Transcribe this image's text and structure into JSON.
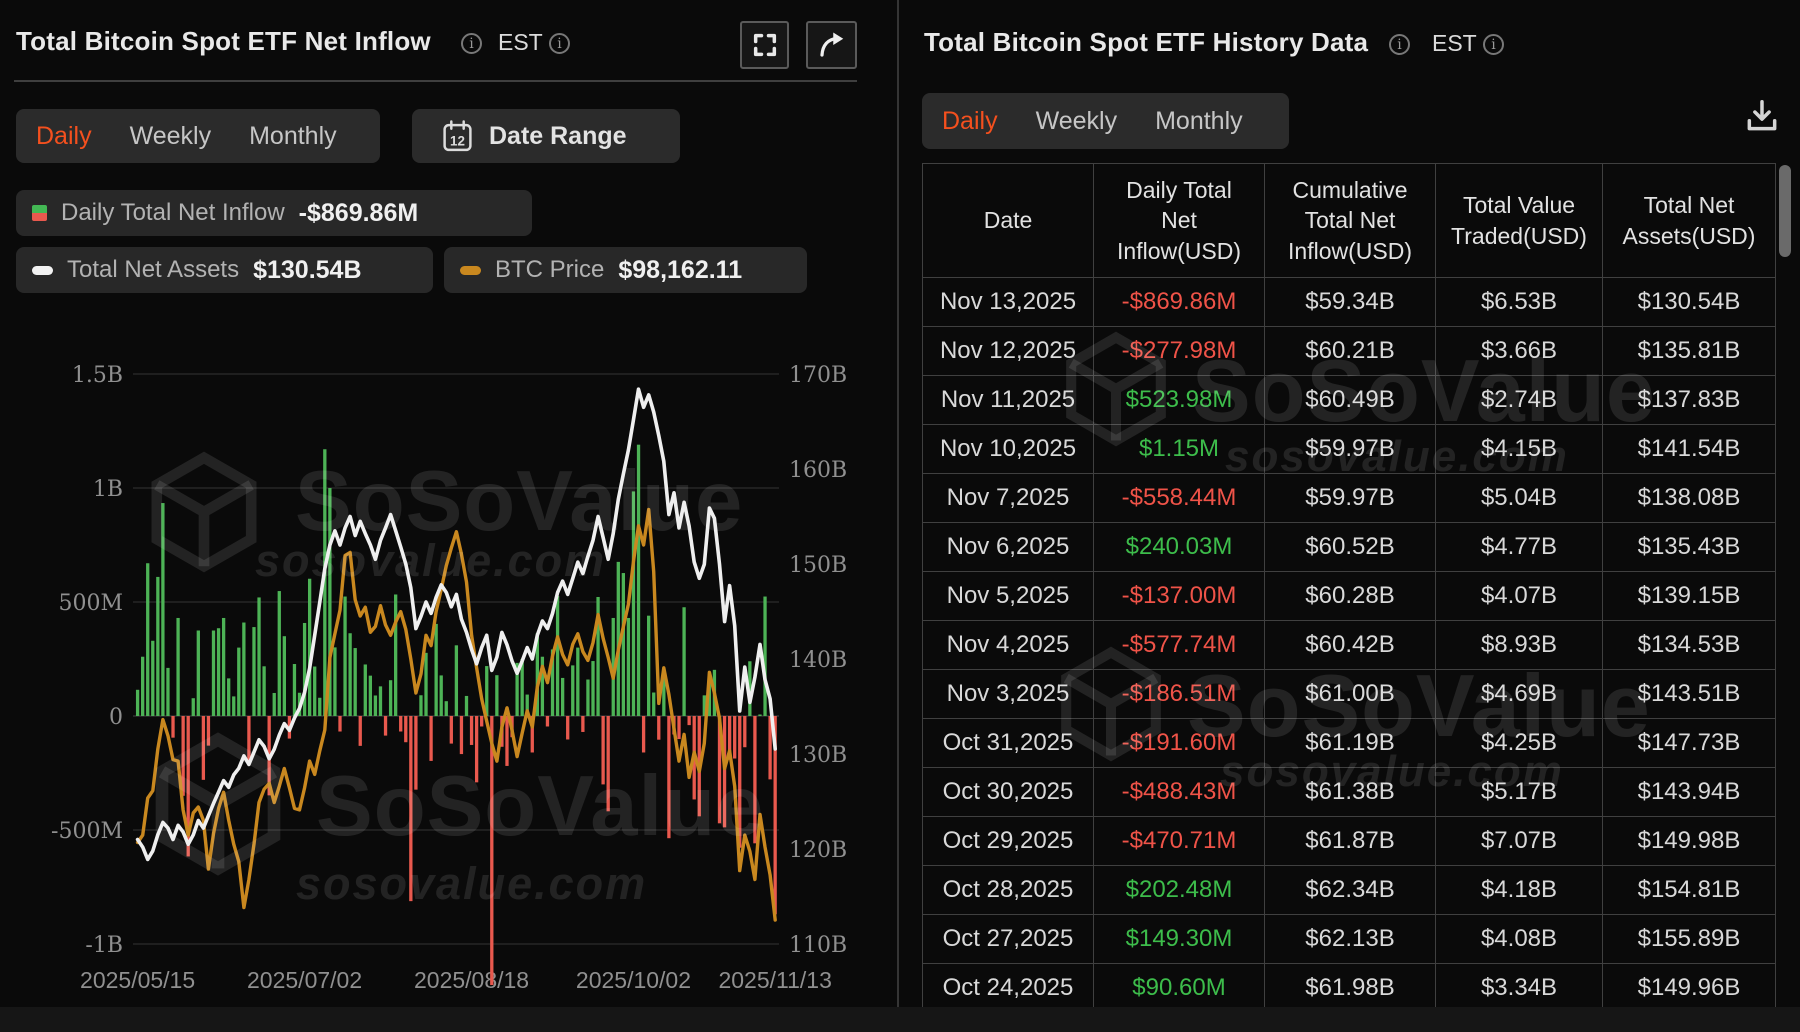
{
  "brand": {
    "watermark_title": "SoSoValue",
    "watermark_domain": "sosovalue.com"
  },
  "colors": {
    "accent_orange": "#f4501e",
    "table_green": "#3dbd4b",
    "table_red": "#ef5348",
    "bar_green": "#4db356",
    "bar_red": "#e9594e",
    "line_assets": "#efefef",
    "line_btc": "#c9881f",
    "grid": "#2c2c2c",
    "zero_line": "#3a3a3a",
    "axis_text": "#909090"
  },
  "left_panel": {
    "title": "Total Bitcoin Spot ETF Net Inflow",
    "timezone_label": "EST",
    "tabs": {
      "items": [
        "Daily",
        "Weekly",
        "Monthly"
      ],
      "active": "Daily"
    },
    "date_range_label": "Date Range",
    "legend": {
      "inflow": {
        "label": "Daily Total Net Inflow",
        "value": "-$869.86M"
      },
      "assets": {
        "label": "Total Net Assets",
        "value": "$130.54B"
      },
      "btc": {
        "label": "BTC Price",
        "value": "$98,162.11"
      }
    }
  },
  "chart_data": {
    "type": "bar+line combo",
    "title": "Total Bitcoin Spot ETF Net Inflow",
    "legend_position": "top-left",
    "grid": "on",
    "x": {
      "tick_labels": [
        "2025/05/15",
        "2025/07/02",
        "2025/08/18",
        "2025/10/02",
        "2025/11/13"
      ],
      "tick_indices": [
        0,
        33,
        66,
        98,
        126
      ],
      "points": 127
    },
    "left_axis": {
      "tick_labels": [
        "1.5B",
        "1B",
        "500M",
        "0",
        "-500M",
        "-1B"
      ],
      "tick_values_musd": [
        1500,
        1000,
        500,
        0,
        -500,
        -1000
      ]
    },
    "right_axis": {
      "tick_labels": [
        "170B",
        "160B",
        "150B",
        "140B",
        "130B",
        "120B",
        "110B"
      ],
      "tick_values_busd": [
        170,
        160,
        150,
        140,
        130,
        120,
        110
      ]
    },
    "series": [
      {
        "name": "Daily Total Net Inflow",
        "type": "bar",
        "unit": "USD millions",
        "axis": "left",
        "values": [
          115,
          260,
          670,
          330,
          610,
          934,
          211,
          -95,
          430,
          -350,
          -616,
          78,
          375,
          -280,
          -130,
          375,
          385,
          430,
          165,
          86,
          300,
          410,
          -215,
          390,
          520,
          218,
          -348,
          101,
          548,
          350,
          -99,
          228,
          102,
          408,
          602,
          217,
          80,
          1170,
          1000,
          301,
          -68,
          524,
          363,
          298,
          -131,
          226,
          177,
          90,
          130,
          -86,
          157,
          533,
          -68,
          -115,
          -812,
          -323,
          91,
          277,
          -197,
          404,
          178,
          65,
          -121,
          310,
          -167,
          88,
          -127,
          -291,
          -46,
          219,
          -1180,
          179,
          -135,
          -219,
          -93,
          233,
          250,
          94,
          -160,
          363,
          260,
          -46,
          292,
          526,
          167,
          -103,
          222,
          300,
          -70,
          160,
          241,
          522,
          -300,
          -418,
          430,
          676,
          627,
          430,
          985,
          1190,
          -160,
          440,
          103,
          -104,
          200,
          -536,
          -81,
          -101,
          477,
          -40,
          -366,
          -440,
          90.6,
          149.3,
          202.48,
          -470.71,
          -488.43,
          -191.6,
          -186.51,
          -577.74,
          -137,
          240.03,
          -558.44,
          1.15,
          523.98,
          -277.98,
          -869.86
        ]
      },
      {
        "name": "Total Net Assets",
        "type": "line",
        "unit": "USD billions",
        "axis": "right",
        "values": [
          121.0,
          120.2,
          118.9,
          119.8,
          121.5,
          122.8,
          122.2,
          121.0,
          122.5,
          121.8,
          120.5,
          121.5,
          123.0,
          122.2,
          123.5,
          124.8,
          126.0,
          127.2,
          126.5,
          127.8,
          128.5,
          129.8,
          128.9,
          130.2,
          131.5,
          130.8,
          129.5,
          130.5,
          132.0,
          133.2,
          132.5,
          133.8,
          134.8,
          136.5,
          139.0,
          142.5,
          146.0,
          149.5,
          152.0,
          153.5,
          152.0,
          153.8,
          155.0,
          153.0,
          154.5,
          153.2,
          152.0,
          150.5,
          152.5,
          153.8,
          155.2,
          153.5,
          151.8,
          150.0,
          147.5,
          143.2,
          144.5,
          146.0,
          144.8,
          146.5,
          147.8,
          147.0,
          145.5,
          146.8,
          144.2,
          142.8,
          141.0,
          139.5,
          141.2,
          142.5,
          138.8,
          140.2,
          142.8,
          141.5,
          139.8,
          138.5,
          139.8,
          141.2,
          140.0,
          142.5,
          144.0,
          143.2,
          144.8,
          147.0,
          148.2,
          146.8,
          148.5,
          150.2,
          149.0,
          150.8,
          152.5,
          155.0,
          152.8,
          150.5,
          153.2,
          156.8,
          159.5,
          162.0,
          165.2,
          168.4,
          166.5,
          167.8,
          166.0,
          163.5,
          160.8,
          155.2,
          157.5,
          153.8,
          156.5,
          154.0,
          150.2,
          148.5,
          149.96,
          155.89,
          154.81,
          149.98,
          143.94,
          147.73,
          143.51,
          134.53,
          139.15,
          135.43,
          138.08,
          141.54,
          137.83,
          135.81,
          130.54
        ]
      },
      {
        "name": "BTC Price",
        "type": "line",
        "unit": "USD",
        "axis": "hidden",
        "values": [
          103400,
          103900,
          106400,
          106900,
          109700,
          111700,
          110600,
          109000,
          108900,
          105600,
          103900,
          105400,
          105800,
          104900,
          101600,
          104000,
          105700,
          106800,
          104900,
          103300,
          102100,
          99000,
          100900,
          103300,
          106100,
          107000,
          107400,
          106100,
          107200,
          108400,
          107100,
          105700,
          105600,
          107100,
          108900,
          108000,
          109600,
          111000,
          115900,
          117500,
          119100,
          122800,
          123000,
          119800,
          118700,
          119300,
          117600,
          118000,
          119400,
          118100,
          117400,
          118300,
          119000,
          117800,
          115800,
          113500,
          114800,
          117400,
          116700,
          119000,
          120500,
          122100,
          123300,
          124400,
          122900,
          121000,
          117400,
          115200,
          113100,
          111600,
          110100,
          108900,
          111200,
          112500,
          111000,
          109200,
          110800,
          112300,
          111200,
          113900,
          115300,
          114200,
          116000,
          117300,
          116100,
          115400,
          116800,
          117500,
          116300,
          115700,
          116900,
          118800,
          117200,
          115900,
          114500,
          116400,
          118000,
          119500,
          122400,
          124800,
          123500,
          125900,
          121700,
          112800,
          115200,
          113400,
          111100,
          108900,
          110700,
          107800,
          109500,
          108200,
          110100,
          114900,
          113500,
          111800,
          108400,
          109600,
          107200,
          101500,
          103900,
          102800,
          100900,
          105300,
          103100,
          101200,
          98162
        ]
      }
    ]
  },
  "right_panel": {
    "title": "Total Bitcoin Spot ETF History Data",
    "timezone_label": "EST",
    "tabs": {
      "items": [
        "Daily",
        "Weekly",
        "Monthly"
      ],
      "active": "Daily"
    },
    "table": {
      "columns": [
        "Date",
        "Daily Total\nNet\nInflow(USD)",
        "Cumulative\nTotal Net\nInflow(USD)",
        "Total Value\nTraded(USD)",
        "Total Net\nAssets(USD)"
      ],
      "rows": [
        [
          "Nov 13,2025",
          "-$869.86M",
          "$59.34B",
          "$6.53B",
          "$130.54B"
        ],
        [
          "Nov 12,2025",
          "-$277.98M",
          "$60.21B",
          "$3.66B",
          "$135.81B"
        ],
        [
          "Nov 11,2025",
          "$523.98M",
          "$60.49B",
          "$2.74B",
          "$137.83B"
        ],
        [
          "Nov 10,2025",
          "$1.15M",
          "$59.97B",
          "$4.15B",
          "$141.54B"
        ],
        [
          "Nov 7,2025",
          "-$558.44M",
          "$59.97B",
          "$5.04B",
          "$138.08B"
        ],
        [
          "Nov 6,2025",
          "$240.03M",
          "$60.52B",
          "$4.77B",
          "$135.43B"
        ],
        [
          "Nov 5,2025",
          "-$137.00M",
          "$60.28B",
          "$4.07B",
          "$139.15B"
        ],
        [
          "Nov 4,2025",
          "-$577.74M",
          "$60.42B",
          "$8.93B",
          "$134.53B"
        ],
        [
          "Nov 3,2025",
          "-$186.51M",
          "$61.00B",
          "$4.69B",
          "$143.51B"
        ],
        [
          "Oct 31,2025",
          "-$191.60M",
          "$61.19B",
          "$4.25B",
          "$147.73B"
        ],
        [
          "Oct 30,2025",
          "-$488.43M",
          "$61.38B",
          "$5.17B",
          "$143.94B"
        ],
        [
          "Oct 29,2025",
          "-$470.71M",
          "$61.87B",
          "$7.07B",
          "$149.98B"
        ],
        [
          "Oct 28,2025",
          "$202.48M",
          "$62.34B",
          "$4.18B",
          "$154.81B"
        ],
        [
          "Oct 27,2025",
          "$149.30M",
          "$62.13B",
          "$4.08B",
          "$155.89B"
        ],
        [
          "Oct 24,2025",
          "$90.60M",
          "$61.98B",
          "$3.34B",
          "$149.96B"
        ]
      ]
    }
  }
}
